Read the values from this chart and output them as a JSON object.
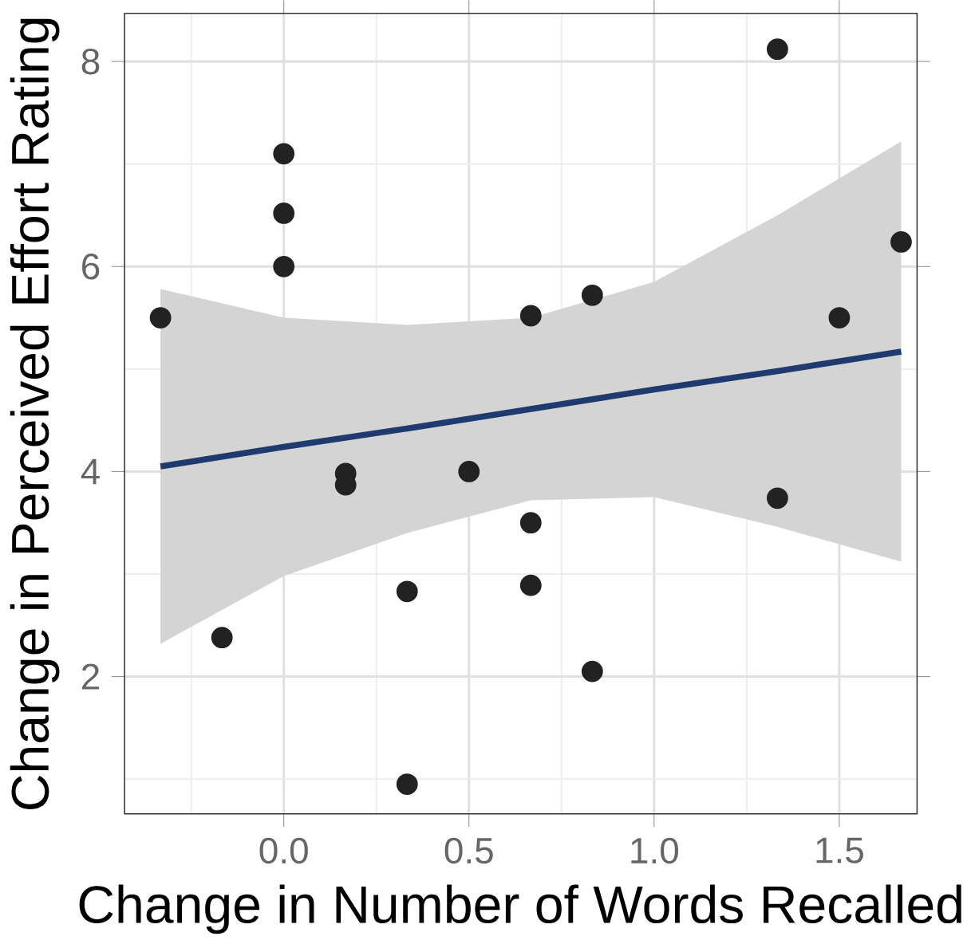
{
  "chart_data": {
    "type": "scatter",
    "xlabel": "Change in Number of Words Recalled",
    "ylabel": "Change in Perceived Effort Rating",
    "xlim": [
      -0.43,
      1.71
    ],
    "ylim": [
      0.66,
      8.47
    ],
    "xticks": [
      {
        "value": 0,
        "label": "0.0"
      },
      {
        "value": 0.5,
        "label": "0.5"
      },
      {
        "value": 1,
        "label": "1.0"
      },
      {
        "value": 1.5,
        "label": "1.5"
      }
    ],
    "yticks": [
      2,
      4,
      6,
      8
    ],
    "grid": true,
    "series": [
      {
        "type": "line",
        "marker": "none",
        "color": "#1f3a6e",
        "x": [
          -0.333,
          0,
          0.333,
          0.667,
          1.0,
          1.333,
          1.667
        ],
        "values": [
          4.05,
          4.24,
          4.42,
          4.61,
          4.8,
          4.98,
          5.17
        ],
        "lower": [
          2.32,
          2.98,
          3.4,
          3.72,
          3.75,
          3.46,
          3.12
        ],
        "upper": [
          5.78,
          5.5,
          5.43,
          5.5,
          5.85,
          6.5,
          7.22
        ]
      },
      {
        "type": "scatter",
        "marker": "circle",
        "color": "#222222",
        "x": [
          -0.333,
          -0.167,
          0,
          0,
          0,
          0.167,
          0.167,
          0.333,
          0.333,
          0.5,
          0.667,
          0.667,
          0.667,
          0.833,
          0.833,
          1.333,
          1.333,
          1.5,
          1.667
        ],
        "values": [
          5.5,
          2.38,
          7.1,
          6.52,
          6.0,
          3.98,
          3.87,
          2.83,
          0.95,
          4.0,
          5.52,
          3.5,
          2.89,
          5.72,
          2.05,
          8.12,
          3.74,
          5.5,
          6.24
        ]
      }
    ]
  }
}
